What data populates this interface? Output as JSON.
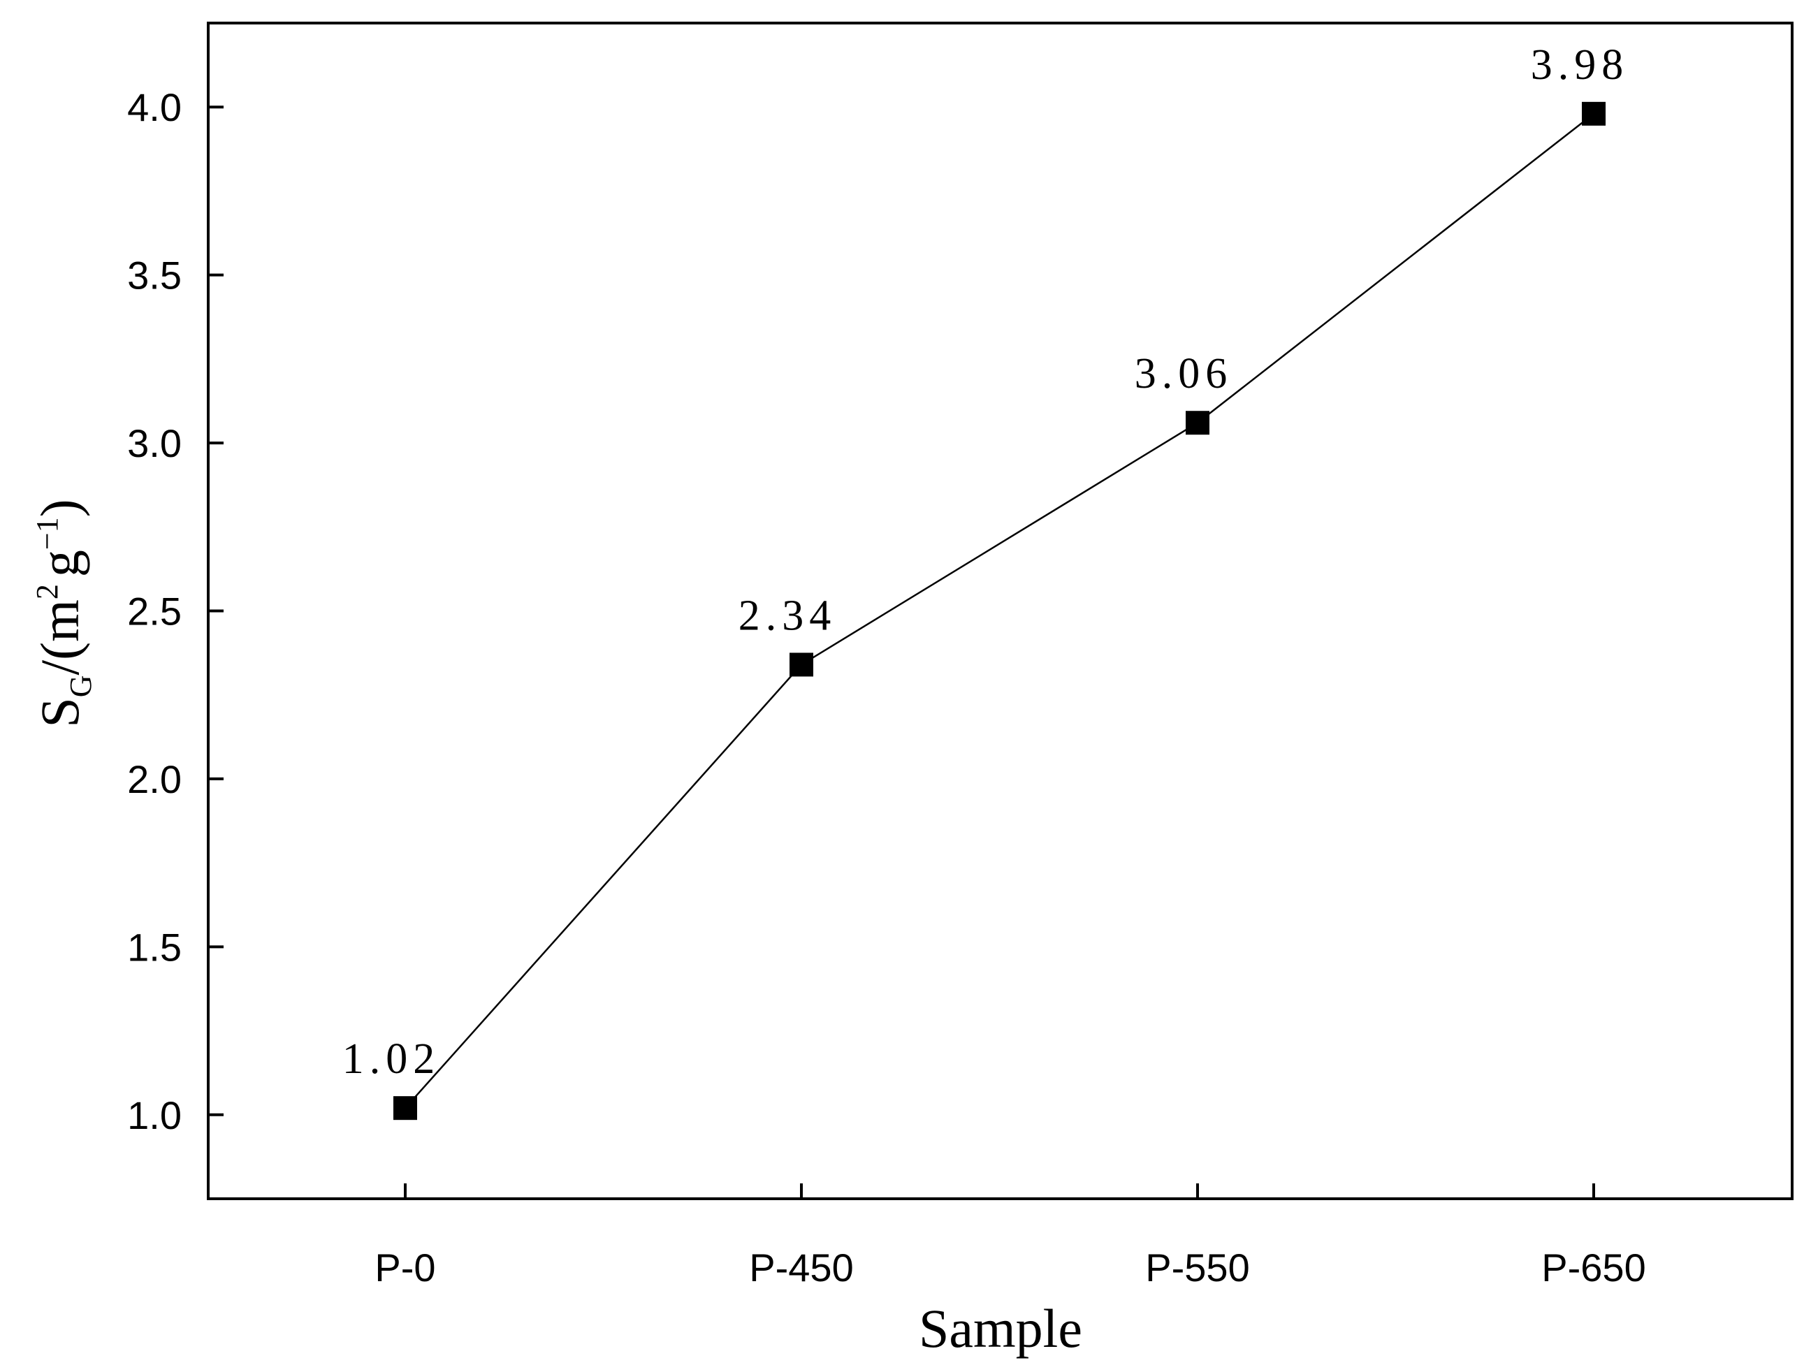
{
  "chart_data": {
    "type": "line",
    "categories": [
      "P-0",
      "P-450",
      "P-550",
      "P-650"
    ],
    "series": [
      {
        "values": [
          1.02,
          2.34,
          3.06,
          3.98
        ],
        "marker": "square",
        "color": "#000000"
      }
    ],
    "data_labels": [
      "1.02",
      "2.34",
      "3.06",
      "3.98"
    ],
    "xlabel": "Sample",
    "ylabel": {
      "main": "S",
      "subscript": "G",
      "unit_open": "/(m",
      "unit_sup1": "2",
      "unit_mid": "g",
      "unit_sup2": "−1",
      "unit_close": ")"
    },
    "ylim": [
      0.75,
      4.25
    ],
    "yticks": [
      "1.0",
      "1.5",
      "2.0",
      "2.5",
      "3.0",
      "3.5",
      "4.0"
    ],
    "grid": false,
    "legend": "none"
  }
}
